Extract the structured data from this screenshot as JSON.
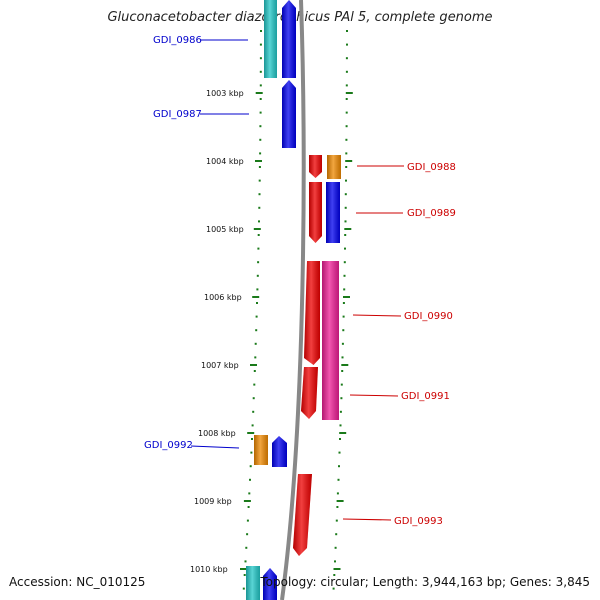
{
  "title": "Gluconacetobacter diazotrophicus PAl 5, complete genome",
  "footer": {
    "accession": "Accession: NC_010125",
    "topology": "Topology: circular; Length: 3,944,163 bp; Genes: 3,845"
  },
  "colors": {
    "backbone": "#888888",
    "ticks": "#1a7a1a",
    "left_label": "#0000cc",
    "right_label": "#cc0000",
    "cyan": "#22c7c7",
    "blue": "#0000ee",
    "red": "#ee0000",
    "orange": "#ee8800",
    "magenta": "#ee1e96"
  },
  "position_labels": [
    "1003 kbp",
    "1004 kbp",
    "1005 kbp",
    "1006 kbp",
    "1007 kbp",
    "1008 kbp",
    "1009 kbp",
    "1010 kbp"
  ],
  "gene_labels": [
    "GDI_0986",
    "GDI_0987",
    "GDI_0988",
    "GDI_0989",
    "GDI_0990",
    "GDI_0991",
    "GDI_0992",
    "GDI_0993"
  ]
}
